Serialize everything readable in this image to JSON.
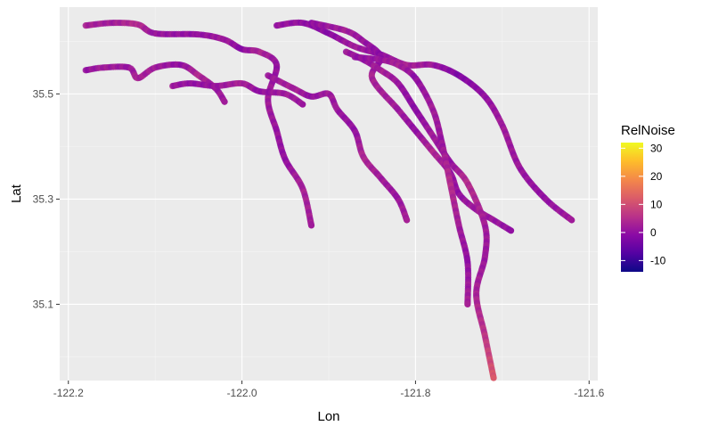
{
  "chart_data": {
    "type": "scatter",
    "title": "",
    "xlabel": "Lon",
    "ylabel": "Lat",
    "xlim": [
      -122.21,
      -121.59
    ],
    "ylim": [
      34.955,
      35.665
    ],
    "x_ticks": [
      -122.2,
      -122.0,
      -121.8,
      -121.6
    ],
    "x_tick_labels": [
      "-122.2",
      "-122.0",
      "-121.8",
      "-121.6"
    ],
    "y_ticks": [
      35.1,
      35.3,
      35.5
    ],
    "y_tick_labels": [
      "35.1",
      "35.3",
      "35.5"
    ],
    "grid": true,
    "panel_background": "#ebebeb",
    "legend": {
      "title": "RelNoise",
      "placement": "right",
      "ticks": [
        30,
        20,
        10,
        0,
        -10
      ],
      "tick_labels": [
        "30",
        "20",
        "10",
        "0",
        "-10"
      ],
      "range": [
        -14,
        32
      ],
      "palette": [
        "#0d0887",
        "#5402a3",
        "#8b0aa5",
        "#b93289",
        "#db5c68",
        "#f48849",
        "#febd2a",
        "#f0f921"
      ]
    },
    "series": [
      {
        "x": [
          -122.18,
          -122.15,
          -122.12,
          -122.1,
          -122.05,
          -122.02,
          -122.0,
          -121.98,
          -121.96,
          -121.97,
          -121.96,
          -121.95,
          -121.93,
          -121.92
        ],
        "y": [
          35.63,
          35.635,
          35.632,
          35.615,
          35.613,
          35.603,
          35.585,
          35.58,
          35.555,
          35.49,
          35.43,
          35.375,
          35.32,
          35.25
        ],
        "v": [
          3,
          2,
          5,
          1,
          0,
          2,
          -1,
          4,
          0,
          2,
          1,
          0,
          3,
          2
        ]
      },
      {
        "x": [
          -122.18,
          -122.16,
          -122.13,
          -122.12,
          -122.1,
          -122.07,
          -122.05,
          -122.03,
          -122.02
        ],
        "y": [
          35.545,
          35.55,
          35.55,
          35.53,
          35.55,
          35.555,
          35.535,
          35.51,
          35.485
        ],
        "v": [
          0,
          2,
          1,
          3,
          2,
          0,
          4,
          1,
          2
        ]
      },
      {
        "x": [
          -122.08,
          -122.06,
          -122.03,
          -122.0,
          -121.98,
          -121.95,
          -121.93
        ],
        "y": [
          35.515,
          35.52,
          35.515,
          35.52,
          35.505,
          35.5,
          35.48
        ],
        "v": [
          2,
          0,
          1,
          3,
          0,
          2,
          1
        ]
      },
      {
        "x": [
          -121.96,
          -121.93,
          -121.9,
          -121.87,
          -121.84,
          -121.81,
          -121.78,
          -121.75,
          -121.72,
          -121.7,
          -121.68,
          -121.65,
          -121.62
        ],
        "y": [
          35.63,
          35.635,
          35.615,
          35.59,
          35.575,
          35.555,
          35.555,
          35.535,
          35.495,
          35.44,
          35.36,
          35.3,
          35.26
        ],
        "v": [
          1,
          0,
          -1,
          2,
          0,
          3,
          1,
          -2,
          0,
          2,
          1,
          0,
          2
        ]
      },
      {
        "x": [
          -121.92,
          -121.88,
          -121.86,
          -121.84,
          -121.85,
          -121.82,
          -121.8,
          -121.78,
          -121.76,
          -121.75,
          -121.73,
          -121.71,
          -121.69
        ],
        "y": [
          35.635,
          35.62,
          35.6,
          35.57,
          35.53,
          35.47,
          35.43,
          35.39,
          35.35,
          35.31,
          35.28,
          35.26,
          35.24
        ],
        "v": [
          0,
          2,
          1,
          -1,
          3,
          2,
          0,
          4,
          1,
          0,
          2,
          1,
          0
        ]
      },
      {
        "x": [
          -121.88,
          -121.86,
          -121.84,
          -121.82,
          -121.8,
          -121.78,
          -121.76,
          -121.74,
          -121.72,
          -121.72,
          -121.73,
          -121.72,
          -121.71
        ],
        "y": [
          35.58,
          35.565,
          35.545,
          35.52,
          35.47,
          35.42,
          35.37,
          35.33,
          35.25,
          35.19,
          35.12,
          35.04,
          34.96
        ],
        "v": [
          2,
          0,
          3,
          1,
          -1,
          2,
          0,
          5,
          2,
          1,
          3,
          6,
          12
        ]
      },
      {
        "x": [
          -121.97,
          -121.94,
          -121.92,
          -121.9,
          -121.89,
          -121.87,
          -121.86,
          -121.84,
          -121.82,
          -121.81
        ],
        "y": [
          35.535,
          35.51,
          35.495,
          35.5,
          35.47,
          35.43,
          35.38,
          35.34,
          35.3,
          35.26
        ],
        "v": [
          1,
          3,
          0,
          2,
          1,
          0,
          4,
          2,
          1,
          3
        ]
      },
      {
        "x": [
          -121.87,
          -121.84,
          -121.82,
          -121.8,
          -121.78,
          -121.77,
          -121.76,
          -121.75,
          -121.74,
          -121.74
        ],
        "y": [
          35.57,
          35.565,
          35.555,
          35.53,
          35.47,
          35.41,
          35.33,
          35.25,
          35.18,
          35.1
        ],
        "v": [
          0,
          1,
          3,
          0,
          2,
          1,
          5,
          2,
          0,
          3
        ]
      }
    ]
  }
}
